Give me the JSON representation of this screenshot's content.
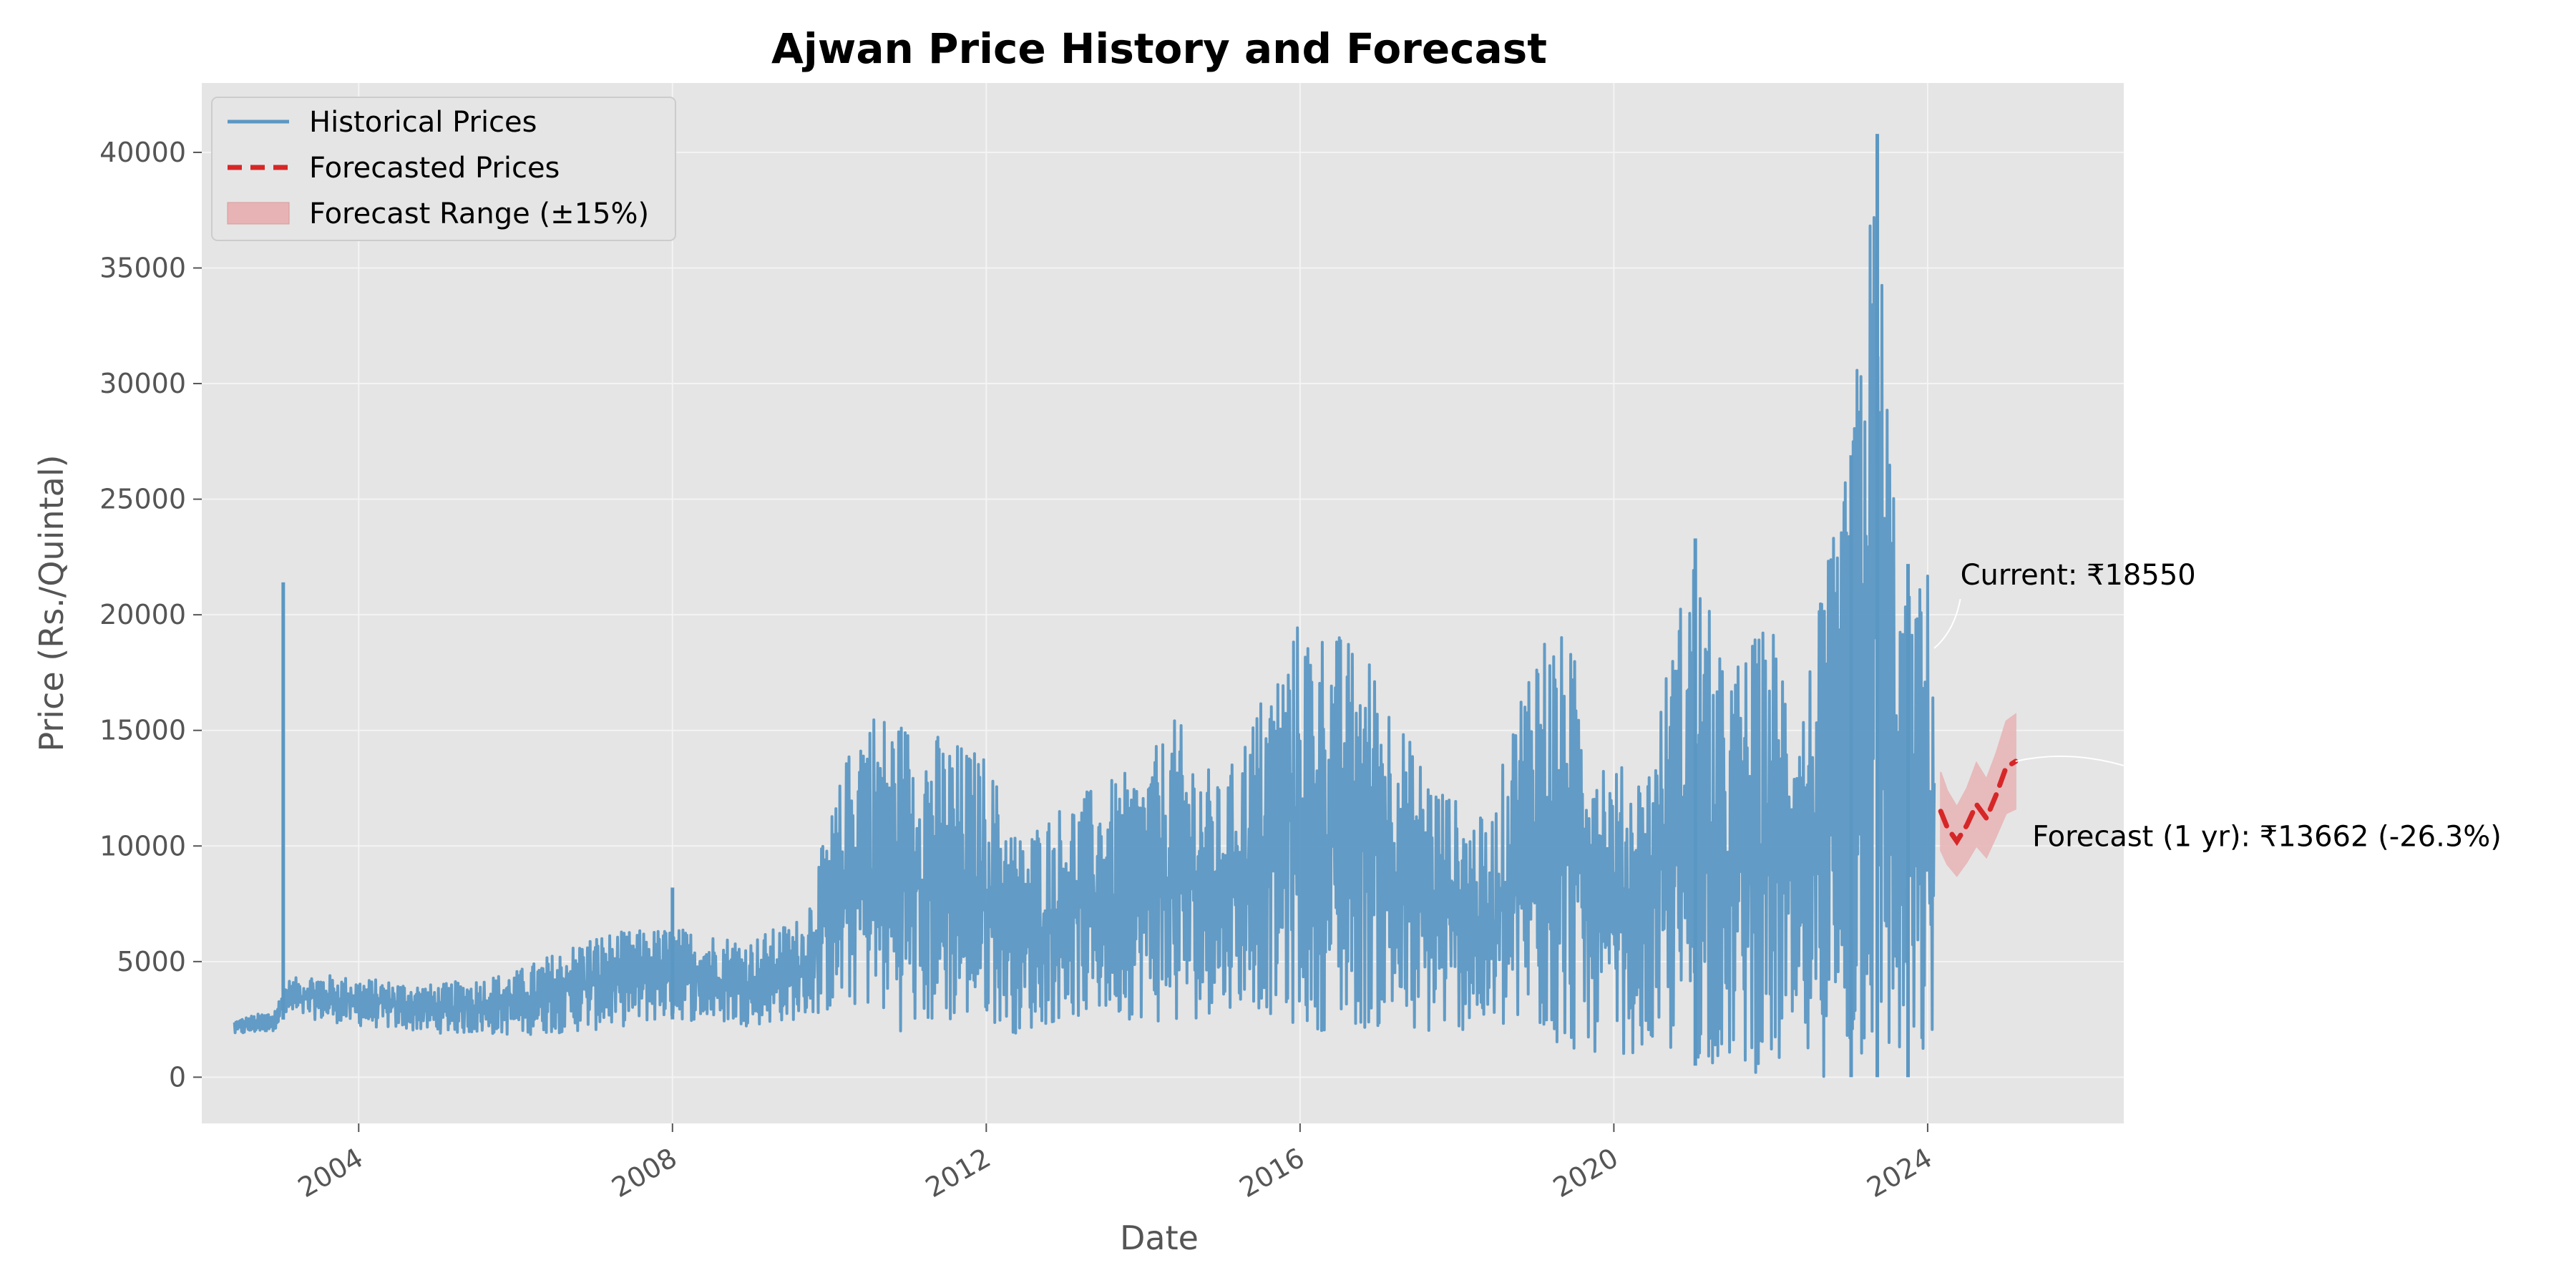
{
  "chart_data": {
    "type": "line",
    "title": "Ajwan Price History and Forecast",
    "xlabel": "Date",
    "ylabel": "Price (Rs./Quintal)",
    "xlim": [
      "2002-01-01",
      "2026-07-01"
    ],
    "ylim": [
      -2000,
      43000
    ],
    "x_ticks": [
      "2004",
      "2008",
      "2012",
      "2016",
      "2020",
      "2024"
    ],
    "y_ticks": [
      0,
      5000,
      10000,
      15000,
      20000,
      25000,
      30000,
      35000,
      40000
    ],
    "grid": true,
    "legend_position": "top-left",
    "legend": [
      "Historical Prices",
      "Forecasted Prices",
      "Forecast Range (±15%)"
    ],
    "colors": {
      "historical": "#5b97c3",
      "forecast": "#d62728",
      "range": "#e8b3b5",
      "plot_bg": "#e5e5e5",
      "grid": "#f4f4f4"
    },
    "series": [
      {
        "name": "Historical Prices",
        "style": "solid",
        "envelope_note": "daily observations; values oscillate between low and high bands",
        "x": [
          "2002-06",
          "2002-12",
          "2003-01",
          "2003-02",
          "2003-06",
          "2004-01",
          "2005-01",
          "2006-01",
          "2007-01",
          "2008-01",
          "2009-01",
          "2009-09",
          "2010-06",
          "2011-01",
          "2012-01",
          "2012-06",
          "2013-01",
          "2014-01",
          "2014-06",
          "2015-01",
          "2015-06",
          "2016-01",
          "2016-06",
          "2017-01",
          "2017-06",
          "2018-01",
          "2018-06",
          "2019-01",
          "2019-06",
          "2020-01",
          "2020-06",
          "2021-01",
          "2021-06",
          "2022-01",
          "2022-06",
          "2023-01",
          "2023-05",
          "2023-09",
          "2024-01",
          "2024-02"
        ],
        "low": [
          1800,
          2000,
          2400,
          2600,
          2500,
          2200,
          1900,
          1800,
          2000,
          2500,
          2200,
          2500,
          3000,
          1800,
          2500,
          1800,
          2500,
          2500,
          2000,
          3000,
          3000,
          2000,
          2000,
          2000,
          1500,
          2000,
          1800,
          1500,
          1000,
          1000,
          1000,
          500,
          500,
          0,
          0,
          0,
          0,
          0,
          0,
          1000
        ],
        "high": [
          2500,
          2900,
          3500,
          4200,
          4500,
          4300,
          4000,
          4600,
          6200,
          6500,
          6000,
          7000,
          16300,
          15500,
          14000,
          10500,
          12000,
          13500,
          15600,
          12500,
          16000,
          20000,
          19500,
          18000,
          14500,
          12000,
          11000,
          20000,
          19000,
          13500,
          13500,
          23300,
          17500,
          20000,
          17000,
          26900,
          40800,
          20500,
          22200,
          19000
        ],
        "spikes": [
          {
            "x": "2003-01-15",
            "y": 21400
          },
          {
            "x": "2008-01-01",
            "y": 8200
          },
          {
            "x": "2021-01-15",
            "y": 23300
          },
          {
            "x": "2023-01-10",
            "y": 26900
          },
          {
            "x": "2023-05-10",
            "y": 40800
          },
          {
            "x": "2023-10-01",
            "y": 22200
          }
        ]
      },
      {
        "name": "Forecasted Prices",
        "style": "dashed",
        "x": [
          "2024-03-01",
          "2024-04-01",
          "2024-05-15",
          "2024-07-01",
          "2024-08-15",
          "2024-10-01",
          "2024-11-15",
          "2025-01-01",
          "2025-02-15"
        ],
        "y": [
          11500,
          10800,
          10200,
          10900,
          11800,
          11200,
          12200,
          13400,
          13662
        ]
      },
      {
        "name": "Forecast Range (±15%)",
        "style": "band",
        "x": [
          "2024-03-01",
          "2024-04-01",
          "2024-05-15",
          "2024-07-01",
          "2024-08-15",
          "2024-10-01",
          "2024-11-15",
          "2025-01-01",
          "2025-02-15"
        ],
        "lower": [
          9800,
          9200,
          8700,
          9300,
          10000,
          9500,
          10400,
          11400,
          11600
        ],
        "upper": [
          13200,
          12400,
          11700,
          12500,
          13600,
          12900,
          14000,
          15400,
          15700
        ]
      }
    ],
    "annotations": [
      {
        "text": "Current: ₹18550",
        "point": {
          "x": "2024-02-01",
          "y": 18550
        },
        "text_at": {
          "x": "2024-06-01",
          "y": 21300
        }
      },
      {
        "text": "Forecast (1 yr): ₹13662 (-26.3%)",
        "point": {
          "x": "2025-02-15",
          "y": 13662
        },
        "text_at": {
          "x": "2025-05-01",
          "y": 10000
        }
      }
    ]
  }
}
